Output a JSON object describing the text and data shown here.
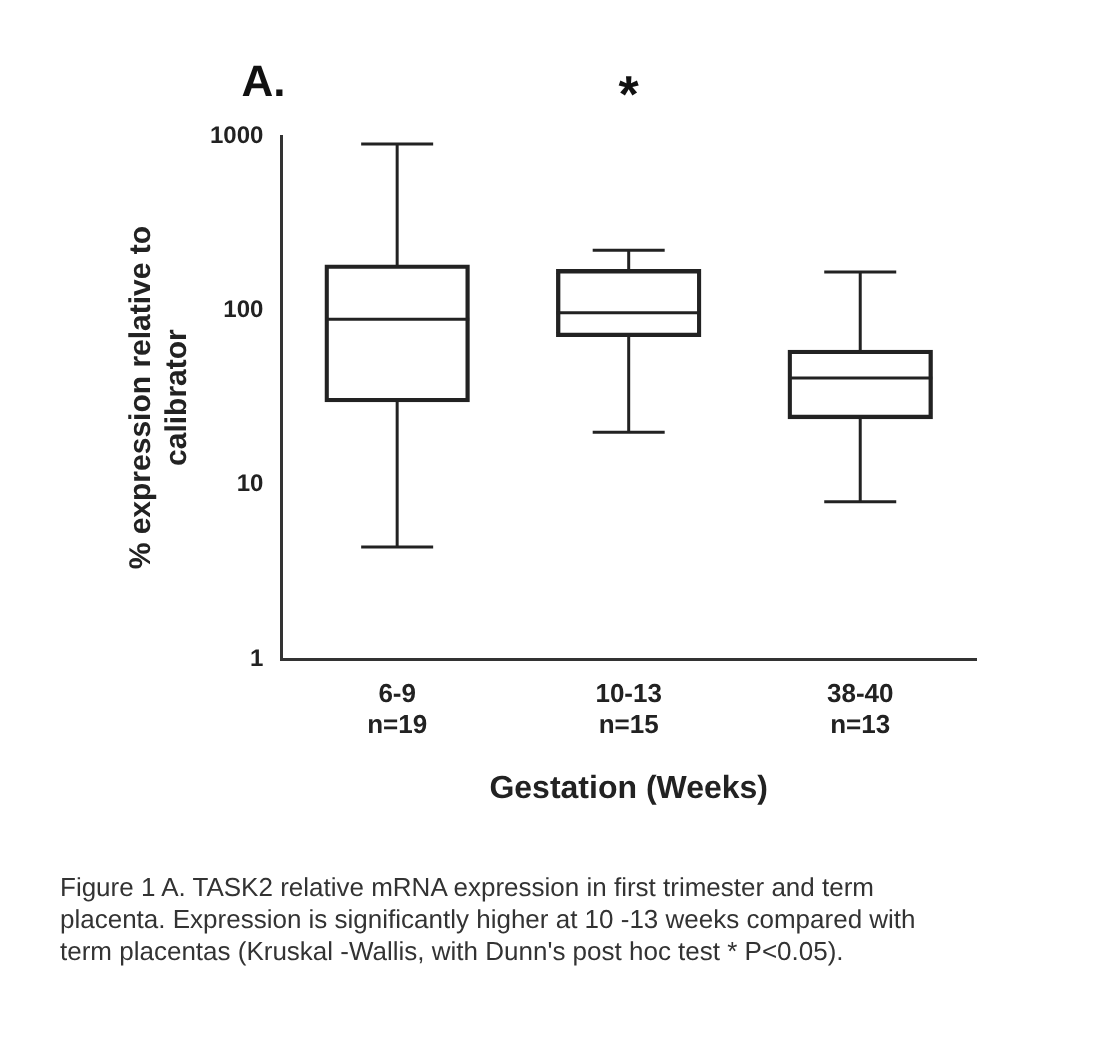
{
  "chart_data": {
    "type": "box",
    "title": "A.",
    "categories": [
      "6-9\nn=19",
      "10-13\nn=15",
      "38-40\nn=13"
    ],
    "boxes": [
      {
        "low": 4.4,
        "q1": 30,
        "median": 89,
        "q3": 182,
        "high": 900
      },
      {
        "low": 20,
        "q1": 71,
        "median": 97,
        "q3": 171,
        "high": 221
      },
      {
        "low": 8,
        "q1": 24,
        "median": 41,
        "q3": 59,
        "high": 166
      }
    ],
    "color": "#222222",
    "xlabel": "Gestation (Weeks)",
    "ylabel": "% expression relative to calibrator",
    "log": true,
    "ylim": [
      1,
      1000
    ],
    "yticks": [
      1,
      10,
      100,
      1000
    ],
    "grid": false,
    "legend": false,
    "annotations": [
      "*",
      "Figure 1 A. TASK2 relative mRNA expression in first trimester and term placenta. Expression is significantly higher at 10  -13 weeks compared with term placentas (Kruskal -Wallis, with Dunn's post hoc test * P<0.05)."
    ]
  }
}
